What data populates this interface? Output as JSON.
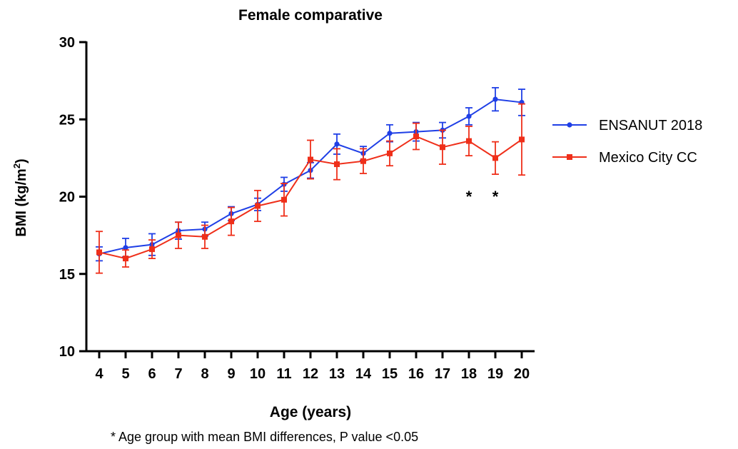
{
  "chart_data": {
    "type": "line",
    "title": "Female comparative",
    "xlabel": "Age (years)",
    "ylabel_main": "BMI (kg/m",
    "ylabel_sup": "2",
    "ylabel_tail": ")",
    "x": [
      4,
      5,
      6,
      7,
      8,
      9,
      10,
      11,
      12,
      13,
      14,
      15,
      16,
      17,
      18,
      19,
      20
    ],
    "x_ticks": [
      "4",
      "5",
      "6",
      "7",
      "8",
      "9",
      "10",
      "11",
      "12",
      "13",
      "14",
      "15",
      "16",
      "17",
      "18",
      "19",
      "20"
    ],
    "ylim": [
      10,
      30
    ],
    "y_ticks": [
      10,
      15,
      20,
      25,
      30
    ],
    "y_tick_labels": [
      "10",
      "15",
      "20",
      "25",
      "30"
    ],
    "legend_position": "right",
    "series": [
      {
        "name": "ENSANUT 2018",
        "color": "#1f3fe6",
        "marker": "circle",
        "values": [
          16.3,
          16.7,
          16.9,
          17.8,
          17.9,
          18.9,
          19.5,
          20.8,
          21.7,
          23.4,
          22.8,
          24.1,
          24.2,
          24.3,
          25.2,
          26.3,
          26.1
        ],
        "err": [
          0.45,
          0.6,
          0.7,
          0.55,
          0.45,
          0.45,
          0.4,
          0.45,
          0.5,
          0.65,
          0.45,
          0.55,
          0.6,
          0.5,
          0.55,
          0.75,
          0.85
        ]
      },
      {
        "name": "Mexico City CC",
        "color": "#ef2f1a",
        "marker": "square",
        "values": [
          16.4,
          16.0,
          16.6,
          17.5,
          17.4,
          18.4,
          19.4,
          19.8,
          22.4,
          22.1,
          22.3,
          22.8,
          23.9,
          23.2,
          23.6,
          22.5,
          23.7
        ],
        "err": [
          1.35,
          0.55,
          0.6,
          0.85,
          0.75,
          0.9,
          1.0,
          1.05,
          1.25,
          1.0,
          0.8,
          0.8,
          0.85,
          1.1,
          0.95,
          1.05,
          2.3
        ]
      }
    ],
    "significance_marker": "*",
    "significant_x": [
      18,
      19
    ],
    "footnote": "* Age group with mean BMI differences, P value <0.05"
  }
}
